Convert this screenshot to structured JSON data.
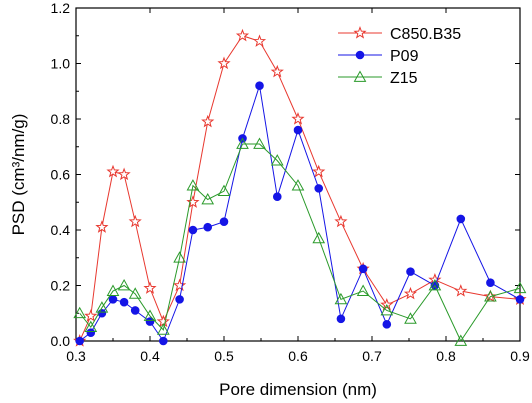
{
  "chart_data": {
    "type": "line",
    "xlabel": "Pore dimension (nm)",
    "ylabel": "PSD (cm³/nm/g)",
    "xlim": [
      0.3,
      0.9
    ],
    "ylim": [
      0.0,
      1.2
    ],
    "x_ticks": [
      "0.3",
      "0.4",
      "0.5",
      "0.6",
      "0.7",
      "0.8",
      "0.9"
    ],
    "y_ticks": [
      "0.0",
      "0.2",
      "0.4",
      "0.6",
      "0.8",
      "1.0",
      "1.2"
    ],
    "grid": false,
    "legend_position": "top-right",
    "series": [
      {
        "name": "C850.B35",
        "color": "#e8382f",
        "marker": "star-open",
        "points": [
          [
            0.305,
            0.0
          ],
          [
            0.32,
            0.09
          ],
          [
            0.335,
            0.41
          ],
          [
            0.35,
            0.61
          ],
          [
            0.365,
            0.6
          ],
          [
            0.38,
            0.43
          ],
          [
            0.4,
            0.19
          ],
          [
            0.418,
            0.07
          ],
          [
            0.44,
            0.2
          ],
          [
            0.458,
            0.5
          ],
          [
            0.478,
            0.79
          ],
          [
            0.5,
            1.0
          ],
          [
            0.525,
            1.1
          ],
          [
            0.548,
            1.08
          ],
          [
            0.572,
            0.97
          ],
          [
            0.6,
            0.8
          ],
          [
            0.628,
            0.61
          ],
          [
            0.658,
            0.43
          ],
          [
            0.688,
            0.26
          ],
          [
            0.72,
            0.13
          ],
          [
            0.752,
            0.17
          ],
          [
            0.785,
            0.22
          ],
          [
            0.82,
            0.18
          ],
          [
            0.86,
            0.16
          ],
          [
            0.9,
            0.15
          ]
        ]
      },
      {
        "name": "P09",
        "color": "#1515e6",
        "marker": "circle-filled",
        "points": [
          [
            0.305,
            0.0
          ],
          [
            0.32,
            0.03
          ],
          [
            0.335,
            0.1
          ],
          [
            0.35,
            0.15
          ],
          [
            0.365,
            0.14
          ],
          [
            0.38,
            0.11
          ],
          [
            0.4,
            0.07
          ],
          [
            0.418,
            0.0
          ],
          [
            0.44,
            0.15
          ],
          [
            0.458,
            0.4
          ],
          [
            0.478,
            0.41
          ],
          [
            0.5,
            0.43
          ],
          [
            0.525,
            0.73
          ],
          [
            0.548,
            0.92
          ],
          [
            0.572,
            0.52
          ],
          [
            0.6,
            0.76
          ],
          [
            0.628,
            0.55
          ],
          [
            0.658,
            0.08
          ],
          [
            0.688,
            0.26
          ],
          [
            0.72,
            0.06
          ],
          [
            0.752,
            0.25
          ],
          [
            0.785,
            0.2
          ],
          [
            0.82,
            0.44
          ],
          [
            0.86,
            0.21
          ],
          [
            0.9,
            0.15
          ]
        ]
      },
      {
        "name": "Z15",
        "color": "#2a9a2a",
        "marker": "triangle-open",
        "points": [
          [
            0.305,
            0.1
          ],
          [
            0.32,
            0.05
          ],
          [
            0.335,
            0.12
          ],
          [
            0.35,
            0.18
          ],
          [
            0.365,
            0.2
          ],
          [
            0.38,
            0.17
          ],
          [
            0.4,
            0.09
          ],
          [
            0.418,
            0.04
          ],
          [
            0.44,
            0.3
          ],
          [
            0.458,
            0.56
          ],
          [
            0.478,
            0.51
          ],
          [
            0.5,
            0.54
          ],
          [
            0.525,
            0.71
          ],
          [
            0.548,
            0.71
          ],
          [
            0.572,
            0.65
          ],
          [
            0.6,
            0.56
          ],
          [
            0.628,
            0.37
          ],
          [
            0.658,
            0.15
          ],
          [
            0.688,
            0.18
          ],
          [
            0.72,
            0.11
          ],
          [
            0.752,
            0.08
          ],
          [
            0.785,
            0.2
          ],
          [
            0.82,
            0.0
          ],
          [
            0.86,
            0.16
          ],
          [
            0.9,
            0.19
          ]
        ]
      }
    ]
  }
}
